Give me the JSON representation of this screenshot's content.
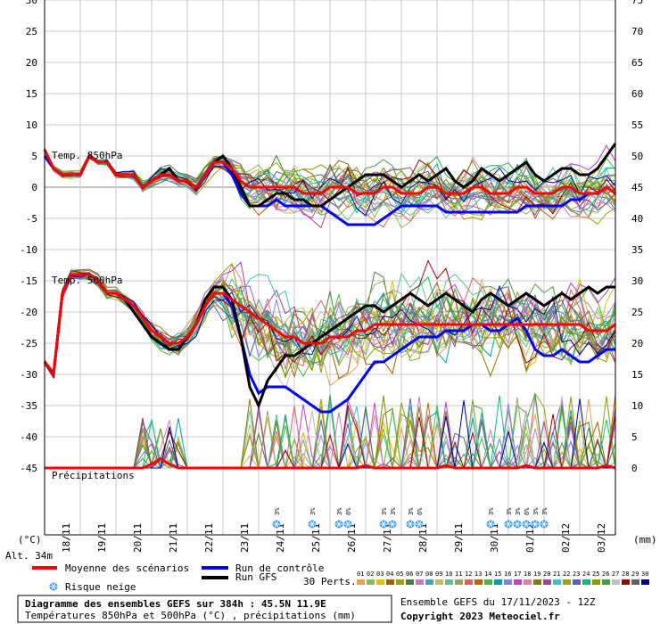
{
  "chart_data": {
    "type": "line",
    "title": "Diagramme des ensembles GEFS sur 384h : 45.5N 11.9E",
    "subtitle": "Températures 850hPa et 500hPa (°C) , précipitations (mm)",
    "left_axis": {
      "unit_label": "(°C)",
      "range": [
        -50,
        30
      ],
      "ticks": [
        30,
        25,
        20,
        15,
        10,
        5,
        0,
        -5,
        -10,
        -15,
        -20,
        -25,
        -30,
        -35,
        -40,
        -45
      ]
    },
    "right_axis": {
      "unit_label": "(mm)",
      "range": [
        -5,
        75
      ],
      "ticks": [
        75,
        70,
        65,
        60,
        55,
        50,
        45,
        40,
        35,
        30,
        25,
        20,
        15,
        10,
        5,
        0
      ]
    },
    "x_axis": {
      "tick_labels": [
        "18/11",
        "19/11",
        "20/11",
        "21/11",
        "22/11",
        "23/11",
        "24/11",
        "25/11",
        "26/11",
        "27/11",
        "28/11",
        "29/11",
        "30/11",
        "01/12",
        "02/12",
        "03/12"
      ]
    },
    "grid": true,
    "section_labels": [
      "Temp. 850hPa",
      "Temp. 500hPa",
      "Précipitations"
    ],
    "series": [
      {
        "name": "Moyenne des scénarios",
        "color": "#ff0000",
        "t850": [
          6,
          3,
          2,
          2,
          2,
          5,
          4,
          4,
          2,
          2,
          2,
          0,
          1,
          2,
          2,
          1,
          1,
          0,
          2,
          4,
          4,
          3,
          1,
          0,
          0,
          0,
          0,
          0,
          0,
          -1,
          -1,
          -1,
          0,
          0,
          0,
          -1,
          -1,
          -1,
          0,
          0,
          -1,
          -1,
          -1,
          0,
          0,
          -1,
          -1,
          -1,
          0,
          0,
          -1,
          -1,
          -1,
          0,
          0,
          -1,
          -1,
          -1,
          0,
          0,
          -1,
          -1,
          -1,
          0,
          -1
        ],
        "t500": [
          -28,
          -30,
          -17,
          -14,
          -14,
          -14,
          -15,
          -17,
          -17,
          -18,
          -19,
          -21,
          -23,
          -24,
          -25,
          -25,
          -24,
          -22,
          -19,
          -17,
          -17,
          -18,
          -19,
          -20,
          -21,
          -22,
          -23,
          -24,
          -24,
          -25,
          -25,
          -25,
          -24,
          -24,
          -24,
          -23,
          -23,
          -22,
          -22,
          -22,
          -22,
          -22,
          -22,
          -22,
          -22,
          -22,
          -22,
          -22,
          -22,
          -22,
          -22,
          -22,
          -22,
          -22,
          -22,
          -22,
          -22,
          -22,
          -22,
          -22,
          -22,
          -23,
          -23,
          -23,
          -22
        ]
      },
      {
        "name": "Run de contrôle",
        "color": "#0000ff",
        "t850": [
          5,
          3,
          2,
          2,
          2,
          5,
          4,
          4,
          2,
          2,
          2,
          0,
          1,
          2,
          3,
          1,
          1,
          0,
          2,
          4,
          4,
          2,
          -1,
          -3,
          -3,
          -3,
          -2,
          -3,
          -3,
          -3,
          -3,
          -3,
          -4,
          -5,
          -6,
          -6,
          -6,
          -6,
          -5,
          -4,
          -3,
          -3,
          -3,
          -3,
          -3,
          -4,
          -4,
          -4,
          -4,
          -4,
          -4,
          -4,
          -4,
          -4,
          -3,
          -3,
          -3,
          -3,
          -3,
          -2,
          -2,
          -1,
          -1,
          0,
          -1
        ],
        "t500": [
          -28,
          -30,
          -17,
          -14,
          -14,
          -14,
          -15,
          -17,
          -17,
          -18,
          -20,
          -22,
          -24,
          -25,
          -26,
          -26,
          -24,
          -22,
          -19,
          -17,
          -17,
          -19,
          -24,
          -30,
          -33,
          -32,
          -32,
          -32,
          -33,
          -34,
          -35,
          -36,
          -36,
          -35,
          -34,
          -32,
          -30,
          -28,
          -28,
          -27,
          -26,
          -25,
          -24,
          -24,
          -24,
          -23,
          -23,
          -23,
          -22,
          -22,
          -23,
          -23,
          -22,
          -21,
          -23,
          -26,
          -27,
          -27,
          -26,
          -27,
          -28,
          -28,
          -27,
          -26,
          -26
        ]
      },
      {
        "name": "Run GFS",
        "color": "#000000",
        "t850": [
          6,
          3,
          2,
          2,
          2,
          5,
          4,
          4,
          2,
          2,
          2,
          0,
          1,
          2,
          3,
          1,
          1,
          0,
          2,
          4,
          5,
          3,
          0,
          -3,
          -3,
          -2,
          -1,
          -1,
          -2,
          -2,
          -3,
          -3,
          -2,
          -1,
          0,
          1,
          2,
          2,
          2,
          1,
          0,
          1,
          2,
          1,
          2,
          3,
          1,
          0,
          1,
          3,
          2,
          1,
          2,
          3,
          4,
          2,
          1,
          2,
          3,
          3,
          2,
          2,
          3,
          5,
          7
        ],
        "t500": [
          -28,
          -30,
          -17,
          -14,
          -14,
          -14,
          -15,
          -17,
          -17,
          -18,
          -20,
          -22,
          -24,
          -25,
          -26,
          -26,
          -24,
          -22,
          -18,
          -16,
          -16,
          -18,
          -24,
          -32,
          -35,
          -31,
          -29,
          -27,
          -27,
          -26,
          -25,
          -24,
          -23,
          -22,
          -21,
          -20,
          -19,
          -19,
          -20,
          -19,
          -18,
          -17,
          -18,
          -19,
          -18,
          -17,
          -18,
          -19,
          -20,
          -18,
          -17,
          -18,
          -19,
          -18,
          -17,
          -18,
          -19,
          -18,
          -17,
          -18,
          -17,
          -16,
          -17,
          -16,
          -16
        ]
      }
    ],
    "perturbations_label": "30 Perts.",
    "perturbation_ids": [
      "01",
      "02",
      "03",
      "04",
      "05",
      "06",
      "07",
      "08",
      "09",
      "10",
      "11",
      "12",
      "13",
      "14",
      "15",
      "16",
      "17",
      "18",
      "19",
      "20",
      "21",
      "22",
      "23",
      "24",
      "25",
      "26",
      "27",
      "28",
      "29",
      "30"
    ],
    "perturbation_colors": [
      "#e8a050",
      "#80c050",
      "#e0c000",
      "#a06000",
      "#a0a000",
      "#408040",
      "#c080c0",
      "#40a0c0",
      "#c0c060",
      "#60c0a0",
      "#a0a060",
      "#e06060",
      "#c06000",
      "#40c040",
      "#00a0a0",
      "#8080e0",
      "#c040c0",
      "#e080a0",
      "#808000",
      "#a040a0",
      "#40c0c0",
      "#a0a000",
      "#6060c0",
      "#00c080",
      "#80a000",
      "#40a040",
      "#c0c0c0",
      "#a00000",
      "#606060",
      "#0000a0"
    ],
    "snow_risk": {
      "label": "Risque neige",
      "markers": [
        {
          "x_index": 26,
          "pct": "3%"
        },
        {
          "x_index": 30,
          "pct": "3%"
        },
        {
          "x_index": 33,
          "pct": "3%"
        },
        {
          "x_index": 34,
          "pct": "6%"
        },
        {
          "x_index": 38,
          "pct": "3%"
        },
        {
          "x_index": 39,
          "pct": "3%"
        },
        {
          "x_index": 41,
          "pct": "3%"
        },
        {
          "x_index": 42,
          "pct": "6%"
        },
        {
          "x_index": 50,
          "pct": "3%"
        },
        {
          "x_index": 52,
          "pct": "3%"
        },
        {
          "x_index": 53,
          "pct": "3%"
        },
        {
          "x_index": 54,
          "pct": "6%"
        },
        {
          "x_index": 55,
          "pct": "3%"
        },
        {
          "x_index": 56,
          "pct": "3%"
        }
      ]
    }
  },
  "legend": {
    "mean": "Moyenne des scénarios",
    "control": "Run de contrôle",
    "gfs": "Run GFS",
    "snow": "Risque neige",
    "perts": "30 Perts."
  },
  "footer": {
    "title": "Diagramme des ensembles GEFS sur 384h : 45.5N 11.9E",
    "subtitle": "Températures 850hPa et 500hPa (°C) , précipitations (mm)",
    "run": "Ensemble GEFS du 17/11/2023 - 12Z",
    "copyright": "Copyright 2023 Meteociel.fr"
  },
  "altitude": "Alt. 34m",
  "colors": {
    "mean": "#ff0000",
    "control": "#0000ff",
    "gfs": "#000000",
    "snow": "#3399ff"
  }
}
